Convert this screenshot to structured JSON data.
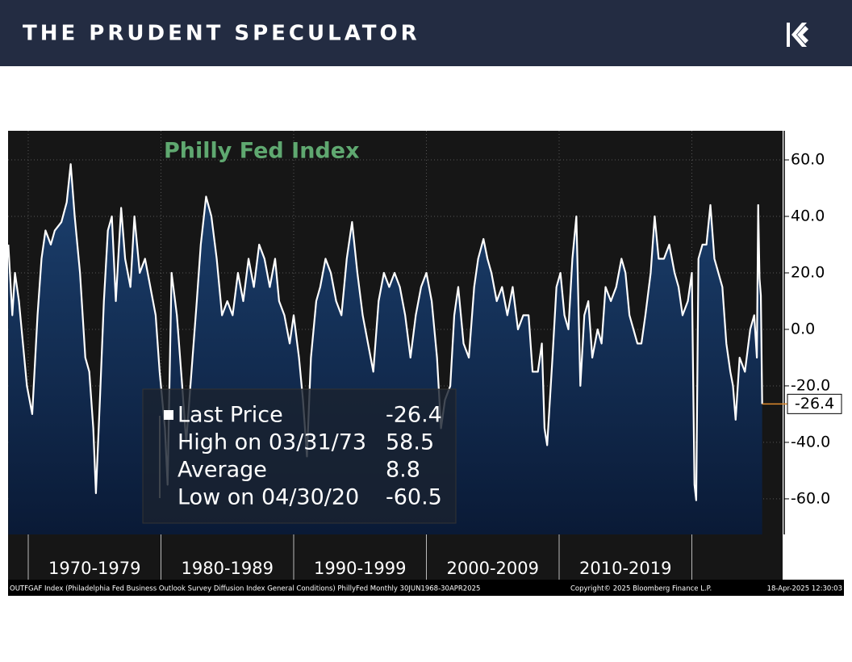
{
  "header": {
    "title": "THE PRUDENT SPECULATOR"
  },
  "chart_data": {
    "type": "area",
    "title": "Philly Fed Index",
    "x": [
      1968.5,
      1968.8,
      1969.0,
      1969.3,
      1969.6,
      1969.9,
      1970.3,
      1970.7,
      1971.0,
      1971.3,
      1971.7,
      1972.0,
      1972.5,
      1972.9,
      1973.2,
      1973.5,
      1973.9,
      1974.3,
      1974.6,
      1974.9,
      1975.1,
      1975.4,
      1975.7,
      1976.0,
      1976.3,
      1976.6,
      1977.0,
      1977.3,
      1977.7,
      1978.0,
      1978.4,
      1978.8,
      1979.2,
      1979.6,
      1979.9,
      1980.3,
      1980.5,
      1980.8,
      1981.2,
      1981.6,
      1981.9,
      1982.3,
      1982.7,
      1983.0,
      1983.4,
      1983.8,
      1984.2,
      1984.6,
      1985.0,
      1985.4,
      1985.8,
      1986.2,
      1986.6,
      1987.0,
      1987.4,
      1987.8,
      1988.2,
      1988.6,
      1988.9,
      1989.3,
      1989.7,
      1990.0,
      1990.4,
      1990.7,
      1991.0,
      1991.3,
      1991.7,
      1992.0,
      1992.4,
      1992.8,
      1993.2,
      1993.6,
      1994.0,
      1994.4,
      1994.8,
      1995.2,
      1995.6,
      1996.0,
      1996.4,
      1996.8,
      1997.2,
      1997.6,
      1998.0,
      1998.4,
      1998.8,
      1999.2,
      1999.6,
      2000.0,
      2000.4,
      2000.8,
      2001.1,
      2001.4,
      2001.8,
      2002.1,
      2002.4,
      2002.8,
      2003.2,
      2003.6,
      2003.9,
      2004.3,
      2004.6,
      2004.9,
      2005.3,
      2005.7,
      2006.1,
      2006.5,
      2006.9,
      2007.3,
      2007.7,
      2008.0,
      2008.4,
      2008.7,
      2008.9,
      2009.1,
      2009.5,
      2009.8,
      2010.1,
      2010.4,
      2010.7,
      2011.0,
      2011.3,
      2011.6,
      2011.9,
      2012.2,
      2012.5,
      2012.9,
      2013.2,
      2013.5,
      2013.9,
      2014.3,
      2014.7,
      2015.0,
      2015.3,
      2015.6,
      2015.9,
      2016.2,
      2016.5,
      2016.9,
      2017.2,
      2017.5,
      2017.9,
      2018.3,
      2018.7,
      2019.0,
      2019.3,
      2019.7,
      2020.0,
      2020.2,
      2020.33,
      2020.5,
      2020.8,
      2021.1,
      2021.4,
      2021.7,
      2022.0,
      2022.3,
      2022.6,
      2022.9,
      2023.1,
      2023.3,
      2023.6,
      2024.0,
      2024.4,
      2024.7,
      2024.9,
      2025.0,
      2025.1,
      2025.2,
      2025.3
    ],
    "series": [
      {
        "name": "Last Price",
        "color": "#ffffff",
        "values": [
          30,
          5,
          20,
          10,
          -5,
          -20,
          -30,
          5,
          25,
          35,
          30,
          35,
          38,
          45,
          58.5,
          40,
          20,
          -10,
          -15,
          -35,
          -58,
          -25,
          10,
          35,
          40,
          10,
          43,
          25,
          15,
          40,
          20,
          25,
          15,
          5,
          -15,
          -35,
          -55,
          20,
          5,
          -20,
          -40,
          -15,
          10,
          30,
          47,
          40,
          25,
          5,
          10,
          5,
          20,
          10,
          25,
          15,
          30,
          25,
          15,
          25,
          10,
          5,
          -5,
          5,
          -10,
          -25,
          -45,
          -10,
          10,
          15,
          25,
          20,
          10,
          5,
          25,
          38,
          20,
          5,
          -5,
          -15,
          10,
          20,
          15,
          20,
          15,
          5,
          -10,
          5,
          15,
          20,
          10,
          -10,
          -35,
          -25,
          -20,
          5,
          15,
          -5,
          -10,
          15,
          25,
          32,
          25,
          20,
          10,
          15,
          5,
          15,
          0,
          5,
          5,
          -15,
          -15,
          -5,
          -35,
          -41,
          -10,
          15,
          20,
          5,
          0,
          25,
          40,
          -20,
          5,
          10,
          -10,
          0,
          -5,
          15,
          10,
          15,
          25,
          20,
          5,
          0,
          -5,
          -5,
          5,
          20,
          40,
          25,
          25,
          30,
          20,
          15,
          5,
          10,
          20,
          -55,
          -60.5,
          25,
          30,
          30,
          44,
          25,
          20,
          15,
          -5,
          -15,
          -20,
          -32,
          -10,
          -15,
          0,
          5,
          -10,
          44,
          18,
          12,
          -26.4
        ]
      }
    ],
    "xlim": [
      1968.48,
      2026.84
    ],
    "ylim": [
      -72.6,
      70.3
    ],
    "yticks": [
      {
        "value": 60,
        "label": "60.0"
      },
      {
        "value": 40,
        "label": "40.0"
      },
      {
        "value": 20,
        "label": "20.0"
      },
      {
        "value": 0,
        "label": "0.0"
      },
      {
        "value": -20,
        "label": "-20.0"
      },
      {
        "value": -40,
        "label": "-40.0"
      },
      {
        "value": -60,
        "label": "-60.0"
      }
    ],
    "xticks": [
      1970,
      1980,
      1990,
      2000,
      2010,
      2020
    ],
    "x_bands": [
      {
        "from": 1970,
        "to": 1980,
        "label": "1970-1979"
      },
      {
        "from": 1980,
        "to": 1990,
        "label": "1980-1989"
      },
      {
        "from": 1990,
        "to": 2000,
        "label": "1990-1999"
      },
      {
        "from": 2000,
        "to": 2010,
        "label": "2000-2009"
      },
      {
        "from": 2010,
        "to": 2020,
        "label": "2010-2019"
      }
    ],
    "grid": true,
    "stats": [
      {
        "label": "Last Price",
        "value": -26.4
      },
      {
        "label": "High on 03/31/73",
        "value": 58.5
      },
      {
        "label": "Average",
        "value": 8.8
      },
      {
        "label": "Low on 04/30/20",
        "value": -60.5
      }
    ],
    "footer": {
      "source": "OUTFGAF Index (Philadelphia Fed Business Outlook Survey Diffusion Index General Conditions) PhillyFed  Monthly 30JUN1968-30APR2025",
      "copyright": "Copyright© 2025 Bloomberg Finance L.P.",
      "timestamp": "18-Apr-2025 12:30:03"
    }
  }
}
